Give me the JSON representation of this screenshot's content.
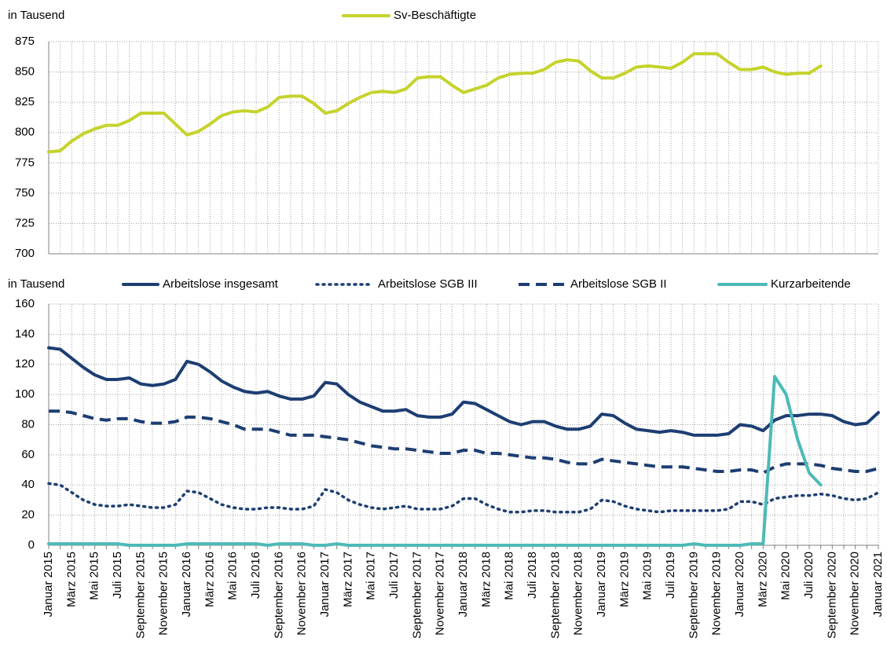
{
  "chart_data": [
    {
      "type": "line",
      "y_label": "in Tausend",
      "ylim": [
        700,
        875
      ],
      "yticks": [
        700,
        725,
        750,
        775,
        800,
        825,
        850,
        875
      ],
      "grid": true,
      "legend": "top",
      "series": [
        {
          "name": "Sv-Beschäftigte",
          "color": "#c5d32d",
          "dash": "solid",
          "values": [
            784,
            785,
            793,
            799,
            803,
            806,
            806,
            810,
            816,
            816,
            816,
            807,
            798,
            801,
            807,
            814,
            817,
            818,
            817,
            821,
            829,
            830,
            830,
            824,
            816,
            818,
            824,
            829,
            833,
            834,
            833,
            836,
            845,
            846,
            846,
            839,
            833,
            836,
            839,
            845,
            848,
            849,
            849,
            852,
            858,
            860,
            859,
            851,
            845,
            845,
            849,
            854,
            855,
            854,
            853,
            858,
            865,
            865,
            865,
            858,
            852,
            852,
            854,
            850,
            848,
            849,
            849,
            855,
            null,
            null,
            null,
            null,
            null
          ]
        }
      ]
    },
    {
      "type": "line",
      "y_label": "in Tausend",
      "ylim": [
        0,
        160
      ],
      "yticks": [
        0,
        20,
        40,
        60,
        80,
        100,
        120,
        140,
        160
      ],
      "grid": true,
      "legend": "top",
      "categories": [
        "Januar 2015",
        null,
        "März 2015",
        null,
        "Mai 2015",
        null,
        "Juli 2015",
        null,
        "September 2015",
        null,
        "November 2015",
        null,
        "Januar 2016",
        null,
        "März 2016",
        null,
        "Mai 2016",
        null,
        "Juli 2016",
        null,
        "September 2016",
        null,
        "November 2016",
        null,
        "Januar 2017",
        null,
        "März 2017",
        null,
        "Mai 2017",
        null,
        "Juli 2017",
        null,
        "September 2017",
        null,
        "November 2017",
        null,
        "Januar 2018",
        null,
        "März 2018",
        null,
        "Mai 2018",
        null,
        "Juli 2018",
        null,
        "September 2018",
        null,
        "November 2018",
        null,
        "Januar 2019",
        null,
        "März 2019",
        null,
        "Mai 2019",
        null,
        "Juli 2019",
        null,
        "September 2019",
        null,
        "November 2019",
        null,
        "Januar 2020",
        null,
        "März 2020",
        null,
        "Mai 2020",
        null,
        "Juli 2020",
        null,
        "September 2020",
        null,
        "November 2020",
        null,
        "Januar 2021"
      ],
      "series": [
        {
          "name": "Arbeitslose insgesamt",
          "color": "#1d3e72",
          "dash": "solid",
          "values": [
            131,
            130,
            124,
            118,
            113,
            110,
            110,
            111,
            107,
            106,
            107,
            110,
            122,
            120,
            115,
            109,
            105,
            102,
            101,
            102,
            99,
            97,
            97,
            99,
            108,
            107,
            100,
            95,
            92,
            89,
            89,
            90,
            86,
            85,
            85,
            87,
            95,
            94,
            90,
            86,
            82,
            80,
            82,
            82,
            79,
            77,
            77,
            79,
            87,
            86,
            81,
            77,
            76,
            75,
            76,
            75,
            73,
            73,
            73,
            74,
            80,
            79,
            76,
            83,
            86,
            86,
            87,
            87,
            86,
            82,
            80,
            81,
            88
          ]
        },
        {
          "name": "Arbeitslose SGB III",
          "color": "#1d3e72",
          "dash": "dotted",
          "values": [
            41,
            40,
            35,
            30,
            27,
            26,
            26,
            27,
            26,
            25,
            25,
            27,
            36,
            35,
            31,
            27,
            25,
            24,
            24,
            25,
            25,
            24,
            24,
            26,
            37,
            35,
            30,
            27,
            25,
            24,
            25,
            26,
            24,
            24,
            24,
            26,
            31,
            31,
            27,
            24,
            22,
            22,
            23,
            23,
            22,
            22,
            22,
            24,
            30,
            29,
            26,
            24,
            23,
            22,
            23,
            23,
            23,
            23,
            23,
            24,
            29,
            29,
            27,
            31,
            32,
            33,
            33,
            34,
            33,
            31,
            30,
            31,
            35
          ]
        },
        {
          "name": "Arbeitslose SGB II",
          "color": "#1d3e72",
          "dash": "dashed",
          "values": [
            89,
            89,
            88,
            86,
            84,
            83,
            84,
            84,
            82,
            81,
            81,
            82,
            85,
            85,
            84,
            82,
            80,
            77,
            77,
            77,
            75,
            73,
            73,
            73,
            72,
            71,
            70,
            68,
            66,
            65,
            64,
            64,
            63,
            62,
            61,
            61,
            63,
            63,
            61,
            61,
            60,
            59,
            58,
            58,
            57,
            55,
            54,
            54,
            57,
            56,
            55,
            54,
            53,
            52,
            52,
            52,
            51,
            50,
            49,
            49,
            50,
            50,
            48,
            52,
            54,
            54,
            54,
            53,
            51,
            50,
            49,
            49,
            51
          ]
        },
        {
          "name": "Kurzarbeitende",
          "color": "#4dbab6",
          "dash": "solid",
          "values": [
            1,
            1,
            1,
            1,
            1,
            1,
            1,
            0,
            0,
            0,
            0,
            0,
            1,
            1,
            1,
            1,
            1,
            1,
            1,
            0,
            1,
            1,
            1,
            0,
            0,
            1,
            0,
            0,
            0,
            0,
            0,
            0,
            0,
            0,
            0,
            0,
            0,
            0,
            0,
            0,
            0,
            0,
            0,
            0,
            0,
            0,
            0,
            0,
            0,
            0,
            0,
            0,
            0,
            0,
            0,
            0,
            1,
            0,
            0,
            0,
            0,
            1,
            1,
            112,
            100,
            70,
            48,
            40,
            null,
            null,
            null,
            null,
            null
          ]
        }
      ]
    }
  ]
}
